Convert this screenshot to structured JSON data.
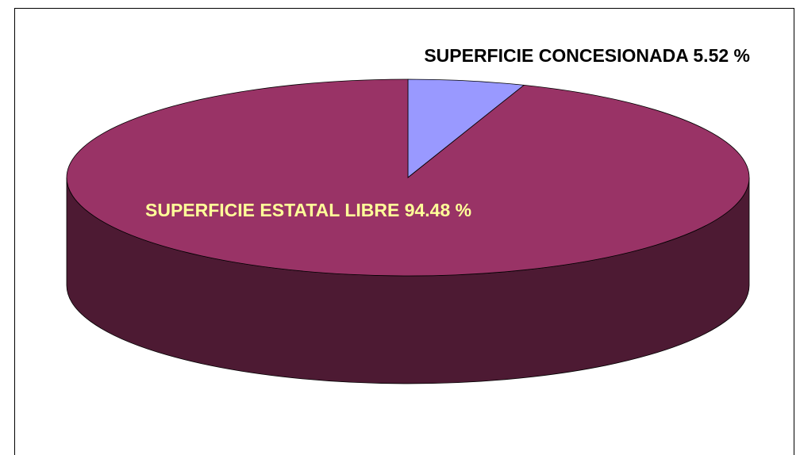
{
  "chart_data": {
    "type": "pie3d",
    "values": [
      5.52,
      94.48
    ],
    "value_labels": [
      "SUPERFICIE CONCESIONADA 5.52 %",
      "SUPERFICIE ESTATAL LIBRE  94.48 %"
    ],
    "colors": [
      "#9999ff",
      "#993366"
    ],
    "label_colors": [
      "#000000",
      "#ffff99"
    ]
  }
}
